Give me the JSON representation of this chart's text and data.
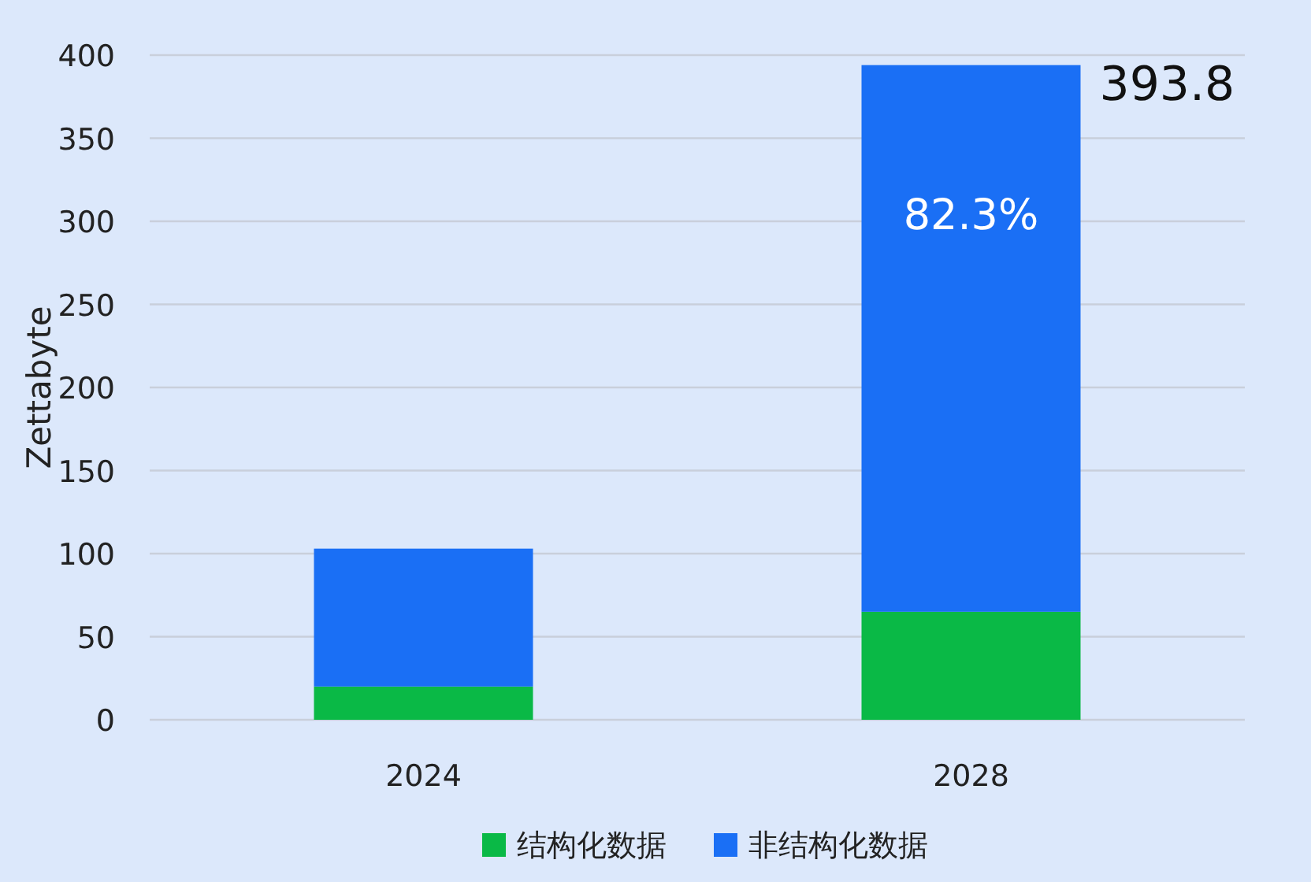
{
  "chart_data": {
    "type": "bar",
    "stacked": true,
    "ylabel": "Zettabyte",
    "categories": [
      "2024",
      "2028"
    ],
    "series": [
      {
        "name": "结构化数据",
        "color": "#0ab946",
        "values": [
          20,
          65
        ]
      },
      {
        "name": "非结构化数据",
        "color": "#1a6ff5",
        "values": [
          83,
          329
        ]
      }
    ],
    "ylim": [
      0,
      400
    ],
    "yticks": [
      0,
      50,
      100,
      150,
      200,
      250,
      300,
      350,
      400
    ],
    "grid": "y",
    "legend": "bottom",
    "annotations": [
      {
        "text": "393.8",
        "x": "2028",
        "y": 393.8
      },
      "82.3%"
    ]
  }
}
